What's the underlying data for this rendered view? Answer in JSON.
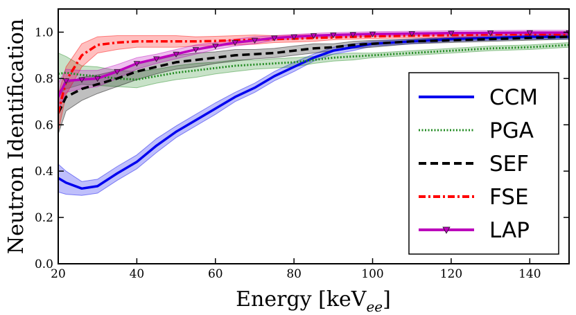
{
  "chart_data": {
    "type": "line",
    "title": "",
    "xlabel": "Energy [keV",
    "xlabel_subscript": "ee",
    "xlabel_suffix": "]",
    "ylabel": "Neutron Identification",
    "xlim": [
      20,
      150
    ],
    "ylim": [
      0.0,
      1.1
    ],
    "xticks": [
      20,
      40,
      60,
      80,
      100,
      120,
      140
    ],
    "yticks": [
      0.0,
      0.2,
      0.4,
      0.6,
      0.8,
      1.0
    ],
    "ytick_labels": [
      "0.0",
      "0.2",
      "0.4",
      "0.6",
      "0.8",
      "1.0"
    ],
    "legend_position": "lower-right",
    "x": [
      20,
      22,
      26,
      30,
      35,
      40,
      45,
      50,
      55,
      60,
      65,
      70,
      75,
      80,
      85,
      90,
      95,
      100,
      110,
      120,
      130,
      140,
      150
    ],
    "series": [
      {
        "name": "CCM",
        "color": "#0000ee",
        "style": "solid",
        "values": [
          0.37,
          0.35,
          0.325,
          0.335,
          0.39,
          0.44,
          0.51,
          0.57,
          0.62,
          0.67,
          0.72,
          0.76,
          0.81,
          0.85,
          0.89,
          0.92,
          0.935,
          0.95,
          0.96,
          0.97,
          0.975,
          0.98,
          0.98
        ],
        "band": [
          0.06,
          0.05,
          0.03,
          0.03,
          0.03,
          0.03,
          0.03,
          0.025,
          0.025,
          0.025,
          0.02,
          0.02,
          0.02,
          0.02,
          0.015,
          0.015,
          0.015,
          0.01,
          0.01,
          0.01,
          0.01,
          0.01,
          0.01
        ]
      },
      {
        "name": "PGA",
        "color": "#228b22",
        "style": "dotted",
        "values": [
          0.82,
          0.825,
          0.815,
          0.81,
          0.8,
          0.795,
          0.81,
          0.825,
          0.835,
          0.845,
          0.855,
          0.86,
          0.865,
          0.87,
          0.88,
          0.89,
          0.895,
          0.9,
          0.91,
          0.92,
          0.93,
          0.935,
          0.945
        ],
        "band": [
          0.09,
          0.07,
          0.04,
          0.04,
          0.035,
          0.035,
          0.03,
          0.03,
          0.03,
          0.025,
          0.025,
          0.02,
          0.02,
          0.02,
          0.015,
          0.015,
          0.015,
          0.01,
          0.01,
          0.01,
          0.01,
          0.01,
          0.01
        ]
      },
      {
        "name": "SEF",
        "color": "#000000",
        "style": "dashed",
        "values": [
          0.65,
          0.72,
          0.755,
          0.775,
          0.8,
          0.83,
          0.85,
          0.87,
          0.88,
          0.89,
          0.9,
          0.905,
          0.91,
          0.92,
          0.93,
          0.935,
          0.945,
          0.95,
          0.96,
          0.965,
          0.97,
          0.975,
          0.98
        ],
        "band": [
          0.09,
          0.06,
          0.05,
          0.04,
          0.035,
          0.035,
          0.03,
          0.03,
          0.03,
          0.025,
          0.025,
          0.02,
          0.02,
          0.02,
          0.02,
          0.015,
          0.015,
          0.015,
          0.01,
          0.01,
          0.01,
          0.01,
          0.01
        ]
      },
      {
        "name": "FSE",
        "color": "#ff0000",
        "style": "dashdot",
        "values": [
          0.65,
          0.79,
          0.9,
          0.945,
          0.955,
          0.96,
          0.96,
          0.96,
          0.96,
          0.962,
          0.965,
          0.968,
          0.97,
          0.972,
          0.975,
          0.977,
          0.98,
          0.982,
          0.985,
          0.987,
          0.99,
          0.99,
          0.99
        ],
        "band": [
          0.08,
          0.06,
          0.05,
          0.035,
          0.03,
          0.025,
          0.025,
          0.025,
          0.02,
          0.02,
          0.02,
          0.02,
          0.015,
          0.015,
          0.015,
          0.01,
          0.01,
          0.01,
          0.01,
          0.01,
          0.01,
          0.01,
          0.01
        ]
      },
      {
        "name": "LAP",
        "color": "#bb00bb",
        "style": "solid-marker",
        "values": [
          0.72,
          0.79,
          0.795,
          0.8,
          0.83,
          0.865,
          0.885,
          0.905,
          0.925,
          0.94,
          0.955,
          0.965,
          0.975,
          0.98,
          0.985,
          0.988,
          0.99,
          0.992,
          0.994,
          0.996,
          0.997,
          0.998,
          0.998
        ],
        "band": [
          0.06,
          0.05,
          0.04,
          0.035,
          0.03,
          0.025,
          0.02,
          0.02,
          0.02,
          0.015,
          0.015,
          0.015,
          0.01,
          0.01,
          0.01,
          0.01,
          0.01,
          0.01,
          0.01,
          0.01,
          0.01,
          0.01,
          0.01
        ]
      }
    ]
  }
}
